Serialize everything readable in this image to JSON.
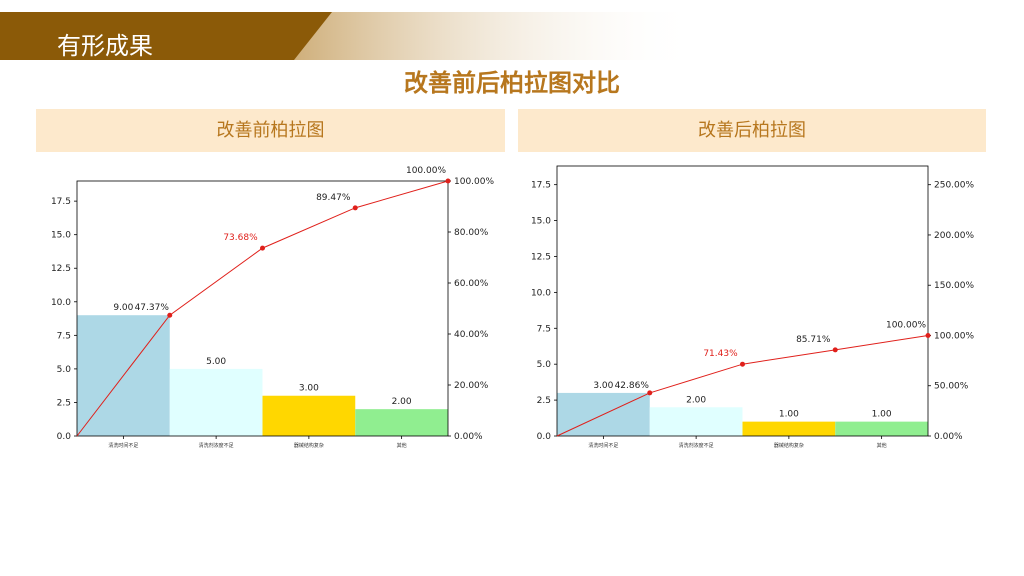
{
  "header": {
    "section_title": "有形成果"
  },
  "slide": {
    "title": "改善前后柏拉图对比"
  },
  "panels": [
    {
      "heading": "改善前柏拉图"
    },
    {
      "heading": "改善后柏拉图"
    }
  ],
  "colors": {
    "banner_brown": "#8B5A08",
    "title_gold": "#B7771E",
    "panel_bg": "#FDE9CC",
    "line_red": "#E0201B",
    "bar_colors": [
      "#ADD8E6",
      "#E0FFFF",
      "#FFD700",
      "#90EE90"
    ]
  },
  "chart_data": [
    {
      "type": "bar",
      "categories": [
        "清洗时间不足",
        "清洗剂浓度不足",
        "器械结构复杂",
        "其他"
      ],
      "values": [
        9,
        5,
        3,
        2
      ],
      "bar_labels": [
        "9.00",
        "5.00",
        "3.00",
        "2.00"
      ],
      "cumulative_percent": [
        47.37,
        73.68,
        89.47,
        100.0
      ],
      "cumulative_labels": [
        "47.37%",
        "73.68%",
        "89.47%",
        "100.00%"
      ],
      "highlighted_cumulative_index": 1,
      "ylim": [
        0,
        19
      ],
      "yticks": [
        "0.0",
        "2.5",
        "5.0",
        "7.5",
        "10.0",
        "12.5",
        "15.0",
        "17.5"
      ],
      "y2lim": [
        0,
        100
      ],
      "y2ticks": [
        "0.00%",
        "20.00%",
        "40.00%",
        "60.00%",
        "80.00%",
        "100.00%"
      ]
    },
    {
      "type": "bar",
      "categories": [
        "清洗时间不足",
        "清洗剂浓度不足",
        "器械结构复杂",
        "其他"
      ],
      "values": [
        3,
        2,
        1,
        1
      ],
      "bar_labels": [
        "3.00",
        "2.00",
        "1.00",
        "1.00"
      ],
      "cumulative_percent": [
        42.86,
        71.43,
        85.71,
        100.0
      ],
      "cumulative_labels": [
        "42.86%",
        "71.43%",
        "85.71%",
        "100.00%"
      ],
      "highlighted_cumulative_index": 1,
      "ylim": [
        0,
        18.8
      ],
      "yticks": [
        "0.0",
        "2.5",
        "5.0",
        "7.5",
        "10.0",
        "12.5",
        "15.0",
        "17.5"
      ],
      "y2lim": [
        0,
        268.6
      ],
      "y2ticks": [
        "0.00%",
        "50.00%",
        "100.00%",
        "150.00%",
        "200.00%",
        "250.00%"
      ]
    }
  ]
}
